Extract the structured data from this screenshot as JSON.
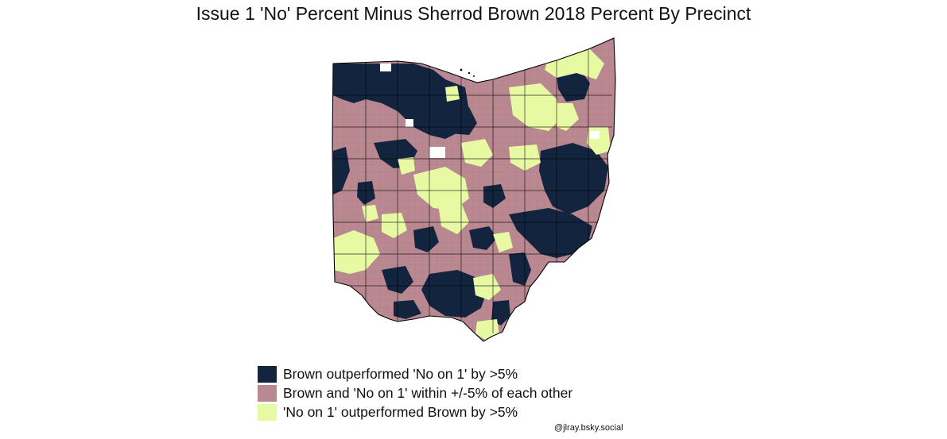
{
  "title": "Issue 1 'No' Percent Minus Sherrod Brown 2018 Percent By Precinct",
  "map": {
    "region": "Ohio",
    "unit": "precinct",
    "fill_categories": [
      "brown_plus",
      "within",
      "no1_plus"
    ]
  },
  "legend": {
    "items": [
      {
        "key": "brown_plus",
        "label": "Brown outperformed 'No on 1' by >5%",
        "color": "#13243f"
      },
      {
        "key": "within",
        "label": "Brown and 'No on 1' within +/-5% of each other",
        "color": "#b98891"
      },
      {
        "key": "no1_plus",
        "label": "'No on 1' outperformed Brown by >5%",
        "color": "#e8f9a3"
      }
    ]
  },
  "credit": "@jlray.bsky.social",
  "colors": {
    "brown_plus": "#13243f",
    "within": "#b98891",
    "no1_plus": "#e8f9a3",
    "border": "#000000",
    "missing": "#ffffff"
  }
}
